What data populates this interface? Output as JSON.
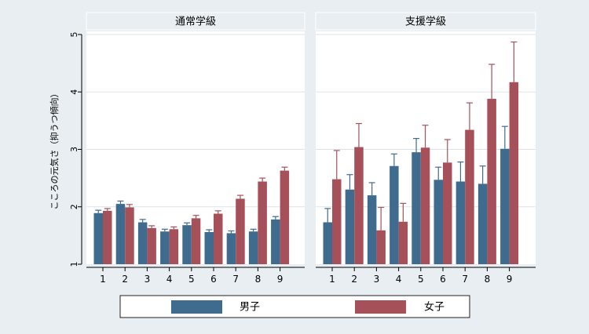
{
  "chart_data": {
    "type": "bar",
    "ylabel": "こころの元気さ（抑うつ傾向）",
    "ylim": [
      1,
      5
    ],
    "yticks": [
      1,
      2,
      3,
      4,
      5
    ],
    "grid": true,
    "legend_position": "bottom",
    "error_bars": true,
    "colors": {
      "boys": "#3f6b8f",
      "girls": "#a6515a",
      "plot_bg": "#ffffff",
      "strip_bg": "#e8eef2",
      "grid": "#dbe3e9"
    },
    "legend": [
      {
        "key": "boys",
        "label": "男子"
      },
      {
        "key": "girls",
        "label": "女子"
      }
    ],
    "panels": [
      {
        "title": "通常学級",
        "categories": [
          "1",
          "2",
          "3",
          "4",
          "5",
          "6",
          "7",
          "8",
          "9"
        ],
        "series": [
          {
            "key": "boys",
            "values": [
              1.89,
              2.05,
              1.73,
              1.57,
              1.68,
              1.56,
              1.54,
              1.57,
              1.78
            ],
            "upper": [
              1.94,
              2.1,
              1.78,
              1.61,
              1.72,
              1.6,
              1.58,
              1.61,
              1.83
            ]
          },
          {
            "key": "girls",
            "values": [
              1.93,
              1.99,
              1.63,
              1.61,
              1.8,
              1.88,
              2.14,
              2.44,
              2.63
            ],
            "upper": [
              1.97,
              2.04,
              1.67,
              1.65,
              1.85,
              1.93,
              2.2,
              2.5,
              2.69
            ]
          }
        ]
      },
      {
        "title": "支援学級",
        "categories": [
          "1",
          "2",
          "3",
          "4",
          "5",
          "6",
          "7",
          "8",
          "9"
        ],
        "series": [
          {
            "key": "boys",
            "values": [
              1.73,
              2.3,
              2.2,
              2.71,
              2.95,
              2.47,
              2.44,
              2.4,
              3.01
            ],
            "upper": [
              1.97,
              2.56,
              2.42,
              2.92,
              3.19,
              2.69,
              2.78,
              2.71,
              3.4
            ]
          },
          {
            "key": "girls",
            "values": [
              2.48,
              3.04,
              1.59,
              1.74,
              3.03,
              2.77,
              3.34,
              3.88,
              4.17
            ],
            "upper": [
              2.98,
              3.45,
              1.99,
              2.06,
              3.42,
              3.17,
              3.81,
              4.48,
              4.87
            ]
          }
        ]
      }
    ]
  }
}
